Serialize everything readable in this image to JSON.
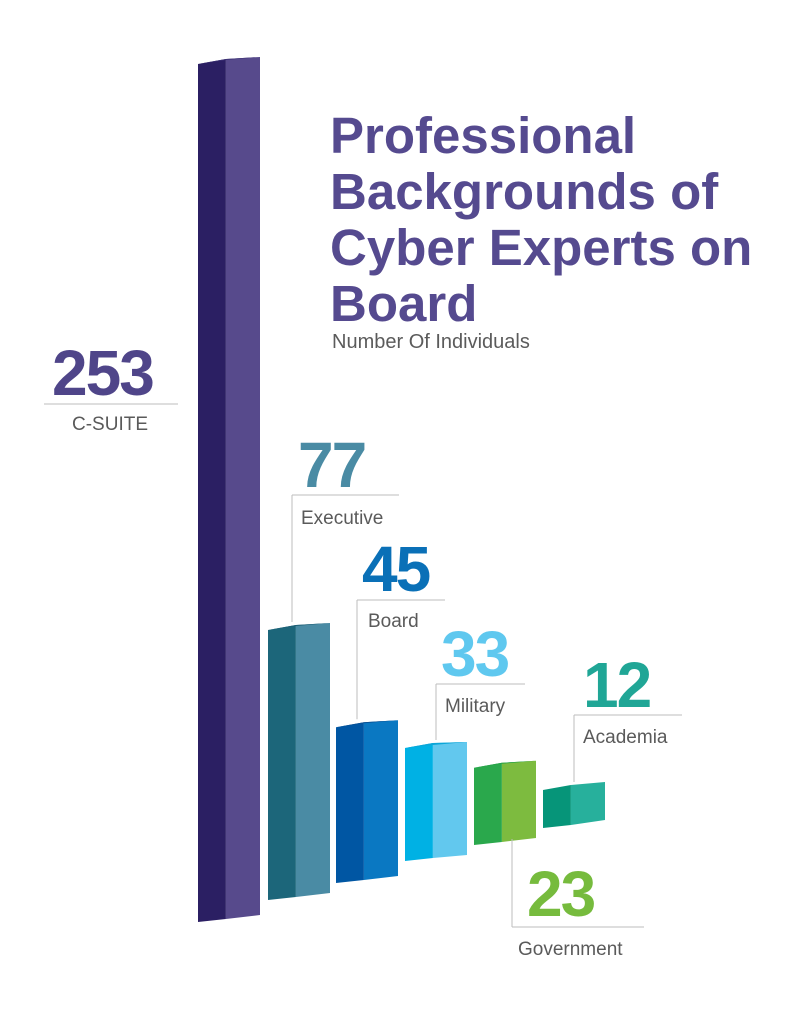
{
  "title": "Professional Backgrounds of Cyber Experts on Board",
  "subtitle": "Number Of Individuals",
  "chart_data": {
    "type": "bar",
    "title": "Professional Backgrounds of Cyber Experts on Board",
    "subtitle": "Number Of Individuals",
    "categories": [
      "C-SUITE",
      "Executive",
      "Board",
      "Military",
      "Government",
      "Academia"
    ],
    "values": [
      253,
      77,
      45,
      33,
      23,
      12
    ],
    "colors": {
      "C-SUITE": {
        "front": "#2b1f63",
        "side": "#574a8c",
        "top": "#3d3275",
        "label": "#4f4589"
      },
      "Executive": {
        "front": "#1c667a",
        "side": "#4a8ba4",
        "top": "#1f5f75",
        "label": "#4a8ba4"
      },
      "Board": {
        "front": "#0056a3",
        "side": "#0a78c2",
        "top": "#0b4f91",
        "label": "#0a70b7"
      },
      "Military": {
        "front": "#00b1e4",
        "side": "#62c8ee",
        "top": "#0ca6d8",
        "label": "#5fc8ef"
      },
      "Government": {
        "front": "#2aa84c",
        "side": "#7dbb3f",
        "top": "#27a148",
        "label": "#76bb3d"
      },
      "Academia": {
        "front": "#069579",
        "side": "#27b09c",
        "top": "#0f8e77",
        "label": "#20a696"
      }
    },
    "category_label_color": "#5a5a5a",
    "leader_color": "#bdbdbd"
  }
}
